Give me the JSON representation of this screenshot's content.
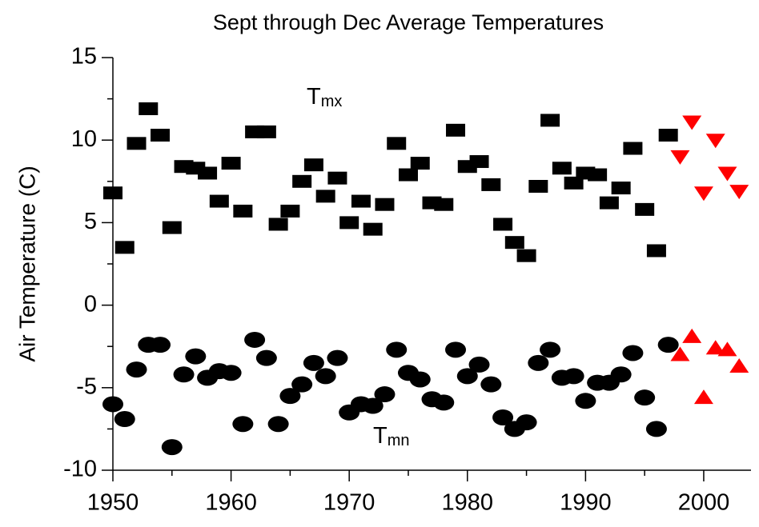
{
  "chart_data": {
    "type": "scatter",
    "title": "Sept through Dec Average Temperatures",
    "y_label": "Air Temperature (C)",
    "annotations": [
      {
        "text": "T",
        "sub": "mx"
      },
      {
        "text": "T",
        "sub": "mn"
      }
    ],
    "xlim": [
      1950,
      2004
    ],
    "xticks": [
      1950,
      1960,
      1970,
      1980,
      1990,
      2000
    ],
    "xminorticks": [
      1955,
      1965,
      1975,
      1985,
      1995
    ],
    "ylim": [
      -10,
      15
    ],
    "yticks": [
      -10,
      -5,
      0,
      5,
      10,
      15
    ],
    "yminorticks": [
      -7.5,
      -2.5,
      2.5,
      7.5,
      12.5
    ],
    "series": [
      {
        "color": "#000000",
        "marker": "square",
        "x": [
          1950,
          1951,
          1952,
          1953,
          1954,
          1955,
          1956,
          1957,
          1958,
          1959,
          1960,
          1961,
          1962,
          1963,
          1964,
          1965,
          1966,
          1967,
          1968,
          1969,
          1970,
          1971,
          1972,
          1973,
          1974,
          1975,
          1976,
          1977,
          1978,
          1979,
          1980,
          1981,
          1982,
          1983,
          1984,
          1985,
          1986,
          1987,
          1988,
          1989,
          1990,
          1991,
          1992,
          1993,
          1994,
          1995,
          1996,
          1997
        ],
        "values": [
          6.8,
          3.5,
          9.8,
          11.9,
          10.3,
          4.7,
          8.4,
          8.3,
          8.0,
          6.3,
          8.6,
          5.7,
          10.5,
          10.5,
          4.9,
          5.7,
          7.5,
          8.5,
          6.6,
          7.7,
          5.0,
          6.3,
          4.6,
          6.1,
          9.8,
          7.9,
          8.6,
          6.2,
          6.1,
          10.6,
          8.4,
          8.7,
          7.3,
          4.9,
          3.8,
          3.0,
          7.2,
          11.2,
          8.3,
          7.4,
          8.0,
          7.9,
          6.2,
          7.1,
          9.5,
          5.8,
          3.3,
          10.3
        ]
      },
      {
        "color": "#000000",
        "marker": "circle",
        "x": [
          1950,
          1951,
          1952,
          1953,
          1954,
          1955,
          1956,
          1957,
          1958,
          1959,
          1960,
          1961,
          1962,
          1963,
          1964,
          1965,
          1966,
          1967,
          1968,
          1969,
          1970,
          1971,
          1972,
          1973,
          1974,
          1975,
          1976,
          1977,
          1978,
          1979,
          1980,
          1981,
          1982,
          1983,
          1984,
          1985,
          1986,
          1987,
          1988,
          1989,
          1990,
          1991,
          1992,
          1993,
          1994,
          1995,
          1996,
          1997
        ],
        "values": [
          -6.0,
          -6.9,
          -3.9,
          -2.4,
          -2.4,
          -8.6,
          -4.2,
          -3.1,
          -4.4,
          -4.0,
          -4.1,
          -7.2,
          -2.1,
          -3.2,
          -7.2,
          -5.5,
          -4.8,
          -3.5,
          -4.3,
          -3.2,
          -6.5,
          -6.0,
          -6.1,
          -5.4,
          -2.7,
          -4.1,
          -4.5,
          -5.7,
          -5.9,
          -2.7,
          -4.3,
          -3.6,
          -4.8,
          -6.8,
          -7.5,
          -7.1,
          -3.5,
          -2.7,
          -4.4,
          -4.3,
          -5.8,
          -4.7,
          -4.7,
          -4.2,
          -2.9,
          -5.6,
          -7.5,
          -2.4
        ]
      },
      {
        "color": "#ff0000",
        "marker": "triangle-down",
        "x": [
          1998,
          1999,
          2000,
          2001,
          2002,
          2003
        ],
        "values": [
          9.0,
          11.1,
          6.8,
          10.0,
          8.0,
          6.9
        ]
      },
      {
        "color": "#ff0000",
        "marker": "triangle-up",
        "x": [
          1998,
          1999,
          2000,
          2001,
          2002,
          2003
        ],
        "values": [
          -3.0,
          -1.9,
          -5.6,
          -2.6,
          -2.7,
          -3.7
        ]
      }
    ]
  }
}
